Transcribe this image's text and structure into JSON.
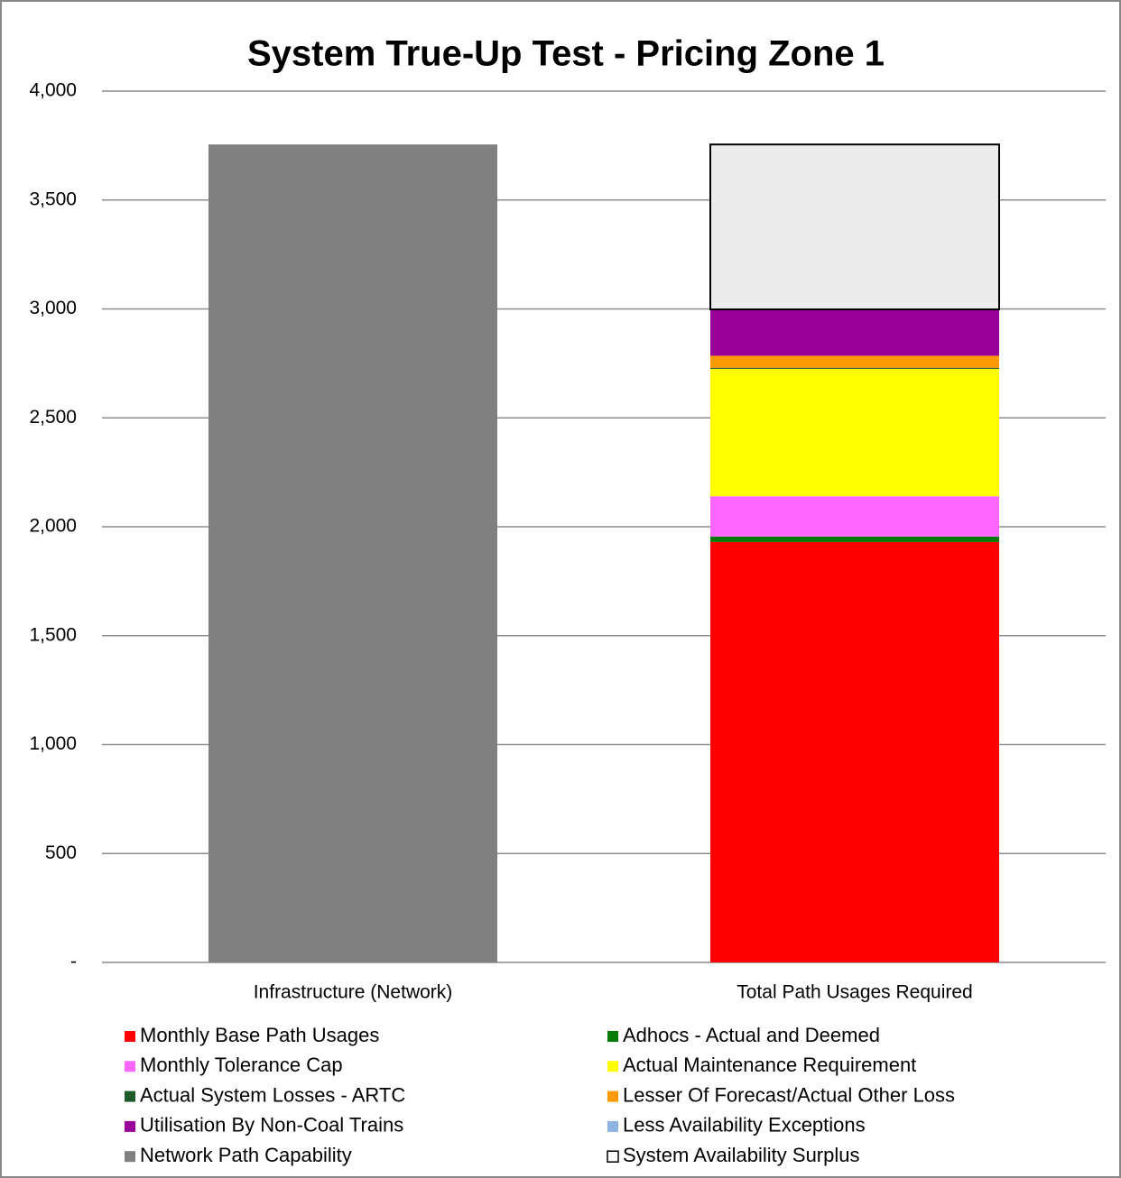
{
  "chart_data": {
    "type": "stacked_bar",
    "title": "System True-Up Test - Pricing Zone 1",
    "categories": [
      "Infrastructure (Network)",
      "Total Path Usages Required"
    ],
    "series": [
      {
        "name": "Monthly Base Path Usages",
        "color": "#ff0000",
        "values": [
          null,
          1930
        ]
      },
      {
        "name": "Adhocs - Actual and Deemed",
        "color": "#007a00",
        "values": [
          null,
          25
        ]
      },
      {
        "name": "Monthly Tolerance Cap",
        "color": "#ff66ff",
        "values": [
          null,
          185
        ]
      },
      {
        "name": "Actual Maintenance Requirement",
        "color": "#ffff00",
        "values": [
          null,
          585
        ]
      },
      {
        "name": "Actual System Losses - ARTC",
        "color": "#1f5a2a",
        "values": [
          null,
          5
        ]
      },
      {
        "name": "Lesser Of Forecast/Actual Other Loss",
        "color": "#ff9900",
        "values": [
          null,
          55
        ]
      },
      {
        "name": "Utilisation By Non-Coal Trains",
        "color": "#990099",
        "values": [
          null,
          213
        ]
      },
      {
        "name": "Less Availability Exceptions",
        "color": "#8db4e2",
        "values": [
          null,
          0
        ]
      },
      {
        "name": "Network Path Capability",
        "color": "#808080",
        "values": [
          3755,
          null
        ]
      },
      {
        "name": "System Availability Surplus",
        "color": "#ececec",
        "edgecolor": "#000000",
        "values": [
          null,
          757
        ]
      }
    ],
    "ylim": [
      0,
      4000
    ],
    "yticks": [
      {
        "value": 0,
        "label": "-"
      },
      500,
      {
        "value": 1000,
        "label": "1,000"
      },
      {
        "value": 1500,
        "label": "1,500"
      },
      {
        "value": 2000,
        "label": "2,000"
      },
      {
        "value": 2500,
        "label": "2,500"
      },
      {
        "value": 3000,
        "label": "3,000"
      },
      {
        "value": 3500,
        "label": "3,500"
      },
      {
        "value": 4000,
        "label": "4,000"
      }
    ],
    "grid": true
  }
}
